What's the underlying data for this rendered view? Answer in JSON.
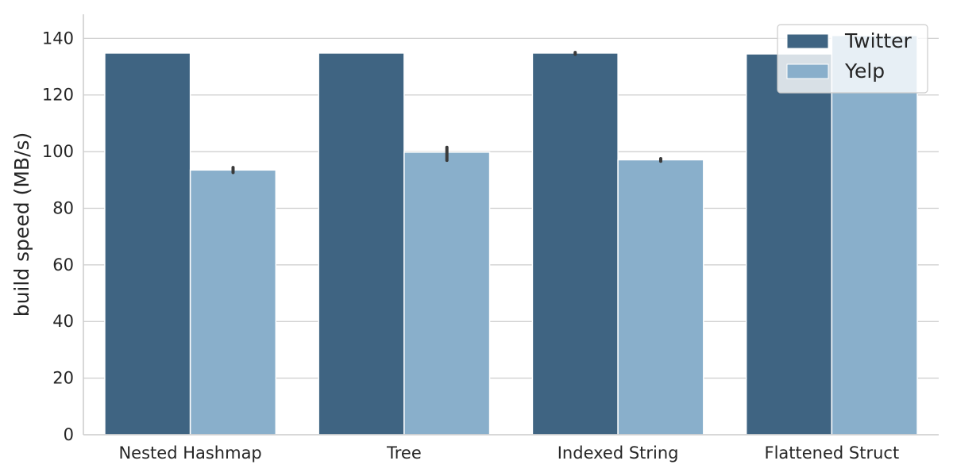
{
  "chart_data": {
    "type": "bar",
    "title": "",
    "xlabel": "",
    "ylabel": "build speed (MB/s)",
    "categories": [
      "Nested Hashmap",
      "Tree",
      "Indexed String",
      "Flattened Struct"
    ],
    "series": [
      {
        "name": "Twitter",
        "values": [
          134.8,
          134.8,
          134.8,
          134.5
        ],
        "error": [
          null,
          null,
          [
            134.4,
            135.0
          ],
          null
        ],
        "color": "#3f6482"
      },
      {
        "name": "Yelp",
        "values": [
          93.5,
          99.8,
          97.1,
          141.0
        ],
        "error": [
          [
            92.6,
            94.4
          ],
          [
            96.9,
            101.5
          ],
          [
            96.6,
            97.5
          ],
          null
        ],
        "color": "#89afcb"
      }
    ],
    "ylim": [
      0,
      148.5
    ],
    "yticks": [
      0,
      20,
      40,
      60,
      80,
      100,
      120,
      140
    ],
    "grid": "y",
    "legend": "top-right"
  }
}
